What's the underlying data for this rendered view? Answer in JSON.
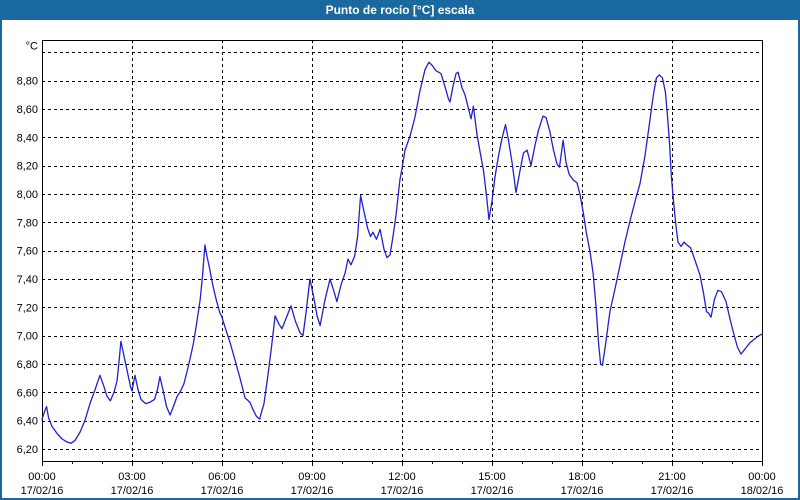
{
  "window": {
    "title": "Punto de rocío [°C] escala",
    "titlebar_color": "#19699e",
    "border_color": "#19699e",
    "background": "#ffffff"
  },
  "chart_data": {
    "type": "line",
    "title": "Punto de rocío [°C] escala",
    "unit_label": "°C",
    "series_name": "Punto de rocío",
    "series_color": "#2121cd",
    "grid_color": "#000000",
    "grid_style": "dashed",
    "plot_bg": "#ffffff",
    "axis_color": "#000000",
    "xlim_hours": [
      0,
      24
    ],
    "ylim": [
      6.115,
      9.087
    ],
    "y_ticks": [
      {
        "v": 6.2,
        "label": "6,20"
      },
      {
        "v": 6.4,
        "label": "6,40"
      },
      {
        "v": 6.6,
        "label": "6,60"
      },
      {
        "v": 6.8,
        "label": "6,80"
      },
      {
        "v": 7.0,
        "label": "7,00"
      },
      {
        "v": 7.2,
        "label": "7,20"
      },
      {
        "v": 7.4,
        "label": "7,40"
      },
      {
        "v": 7.6,
        "label": "7,60"
      },
      {
        "v": 7.8,
        "label": "7,80"
      },
      {
        "v": 8.0,
        "label": "8,00"
      },
      {
        "v": 8.2,
        "label": "8,20"
      },
      {
        "v": 8.4,
        "label": "8,40"
      },
      {
        "v": 8.6,
        "label": "8,60"
      },
      {
        "v": 8.8,
        "label": "8,80"
      },
      {
        "v": 9.0,
        "label": ""
      }
    ],
    "x_ticks": [
      {
        "h": 0,
        "time": "00:00",
        "date": "17/02/16"
      },
      {
        "h": 3,
        "time": "03:00",
        "date": "17/02/16"
      },
      {
        "h": 6,
        "time": "06:00",
        "date": "17/02/16"
      },
      {
        "h": 9,
        "time": "09:00",
        "date": "17/02/16"
      },
      {
        "h": 12,
        "time": "12:00",
        "date": "17/02/16"
      },
      {
        "h": 15,
        "time": "15:00",
        "date": "17/02/16"
      },
      {
        "h": 18,
        "time": "18:00",
        "date": "17/02/16"
      },
      {
        "h": 21,
        "time": "21:00",
        "date": "17/02/16"
      },
      {
        "h": 24,
        "time": "00:00",
        "date": "18/02/16"
      }
    ],
    "points": [
      [
        0.0,
        6.41
      ],
      [
        0.08,
        6.46
      ],
      [
        0.15,
        6.5
      ],
      [
        0.22,
        6.42
      ],
      [
        0.33,
        6.36
      ],
      [
        0.5,
        6.31
      ],
      [
        0.67,
        6.27
      ],
      [
        0.83,
        6.25
      ],
      [
        0.97,
        6.24
      ],
      [
        1.1,
        6.26
      ],
      [
        1.27,
        6.32
      ],
      [
        1.43,
        6.4
      ],
      [
        1.6,
        6.52
      ],
      [
        1.77,
        6.62
      ],
      [
        1.93,
        6.72
      ],
      [
        2.05,
        6.65
      ],
      [
        2.17,
        6.57
      ],
      [
        2.28,
        6.54
      ],
      [
        2.4,
        6.6
      ],
      [
        2.5,
        6.68
      ],
      [
        2.57,
        6.82
      ],
      [
        2.63,
        6.96
      ],
      [
        2.73,
        6.86
      ],
      [
        2.83,
        6.76
      ],
      [
        2.95,
        6.64
      ],
      [
        3.0,
        6.61
      ],
      [
        3.1,
        6.72
      ],
      [
        3.2,
        6.62
      ],
      [
        3.3,
        6.55
      ],
      [
        3.45,
        6.52
      ],
      [
        3.6,
        6.53
      ],
      [
        3.75,
        6.55
      ],
      [
        3.85,
        6.62
      ],
      [
        3.93,
        6.71
      ],
      [
        4.05,
        6.6
      ],
      [
        4.15,
        6.5
      ],
      [
        4.27,
        6.44
      ],
      [
        4.4,
        6.51
      ],
      [
        4.5,
        6.57
      ],
      [
        4.6,
        6.6
      ],
      [
        4.73,
        6.66
      ],
      [
        4.85,
        6.76
      ],
      [
        4.95,
        6.85
      ],
      [
        5.05,
        6.95
      ],
      [
        5.15,
        7.08
      ],
      [
        5.27,
        7.25
      ],
      [
        5.35,
        7.42
      ],
      [
        5.43,
        7.64
      ],
      [
        5.5,
        7.56
      ],
      [
        5.6,
        7.46
      ],
      [
        5.7,
        7.35
      ],
      [
        5.8,
        7.26
      ],
      [
        5.93,
        7.16
      ],
      [
        6.0,
        7.13
      ],
      [
        6.1,
        7.06
      ],
      [
        6.27,
        6.95
      ],
      [
        6.43,
        6.83
      ],
      [
        6.6,
        6.7
      ],
      [
        6.77,
        6.56
      ],
      [
        6.93,
        6.53
      ],
      [
        7.05,
        6.47
      ],
      [
        7.15,
        6.43
      ],
      [
        7.25,
        6.41
      ],
      [
        7.4,
        6.52
      ],
      [
        7.53,
        6.72
      ],
      [
        7.65,
        6.92
      ],
      [
        7.77,
        7.14
      ],
      [
        7.9,
        7.08
      ],
      [
        8.0,
        7.05
      ],
      [
        8.15,
        7.13
      ],
      [
        8.3,
        7.21
      ],
      [
        8.45,
        7.1
      ],
      [
        8.6,
        7.02
      ],
      [
        8.7,
        7.0
      ],
      [
        8.8,
        7.16
      ],
      [
        8.93,
        7.4
      ],
      [
        9.05,
        7.28
      ],
      [
        9.17,
        7.14
      ],
      [
        9.27,
        7.07
      ],
      [
        9.43,
        7.25
      ],
      [
        9.6,
        7.4
      ],
      [
        9.72,
        7.32
      ],
      [
        9.83,
        7.24
      ],
      [
        9.97,
        7.36
      ],
      [
        10.1,
        7.44
      ],
      [
        10.2,
        7.54
      ],
      [
        10.3,
        7.5
      ],
      [
        10.42,
        7.56
      ],
      [
        10.52,
        7.7
      ],
      [
        10.62,
        7.99
      ],
      [
        10.72,
        7.89
      ],
      [
        10.85,
        7.76
      ],
      [
        10.95,
        7.7
      ],
      [
        11.03,
        7.73
      ],
      [
        11.15,
        7.68
      ],
      [
        11.27,
        7.75
      ],
      [
        11.4,
        7.61
      ],
      [
        11.5,
        7.55
      ],
      [
        11.6,
        7.57
      ],
      [
        11.7,
        7.7
      ],
      [
        11.8,
        7.85
      ],
      [
        11.93,
        8.1
      ],
      [
        12.0,
        8.18
      ],
      [
        12.1,
        8.31
      ],
      [
        12.27,
        8.41
      ],
      [
        12.43,
        8.54
      ],
      [
        12.6,
        8.73
      ],
      [
        12.77,
        8.88
      ],
      [
        12.9,
        8.93
      ],
      [
        13.0,
        8.91
      ],
      [
        13.13,
        8.87
      ],
      [
        13.3,
        8.85
      ],
      [
        13.43,
        8.76
      ],
      [
        13.55,
        8.67
      ],
      [
        13.6,
        8.65
      ],
      [
        13.7,
        8.76
      ],
      [
        13.8,
        8.85
      ],
      [
        13.87,
        8.86
      ],
      [
        14.0,
        8.75
      ],
      [
        14.1,
        8.7
      ],
      [
        14.22,
        8.6
      ],
      [
        14.3,
        8.53
      ],
      [
        14.38,
        8.62
      ],
      [
        14.5,
        8.42
      ],
      [
        14.6,
        8.3
      ],
      [
        14.72,
        8.16
      ],
      [
        14.82,
        7.98
      ],
      [
        14.9,
        7.82
      ],
      [
        15.0,
        7.95
      ],
      [
        15.1,
        8.12
      ],
      [
        15.2,
        8.25
      ],
      [
        15.33,
        8.39
      ],
      [
        15.45,
        8.49
      ],
      [
        15.55,
        8.38
      ],
      [
        15.67,
        8.22
      ],
      [
        15.8,
        8.01
      ],
      [
        15.93,
        8.16
      ],
      [
        16.05,
        8.29
      ],
      [
        16.17,
        8.31
      ],
      [
        16.3,
        8.2
      ],
      [
        16.42,
        8.33
      ],
      [
        16.55,
        8.45
      ],
      [
        16.7,
        8.55
      ],
      [
        16.8,
        8.54
      ],
      [
        16.93,
        8.44
      ],
      [
        17.05,
        8.31
      ],
      [
        17.17,
        8.21
      ],
      [
        17.25,
        8.19
      ],
      [
        17.37,
        8.38
      ],
      [
        17.47,
        8.22
      ],
      [
        17.57,
        8.14
      ],
      [
        17.7,
        8.1
      ],
      [
        17.83,
        8.08
      ],
      [
        17.93,
        8.0
      ],
      [
        18.05,
        7.86
      ],
      [
        18.15,
        7.72
      ],
      [
        18.27,
        7.59
      ],
      [
        18.37,
        7.44
      ],
      [
        18.47,
        7.2
      ],
      [
        18.55,
        6.95
      ],
      [
        18.62,
        6.8
      ],
      [
        18.68,
        6.79
      ],
      [
        18.78,
        6.93
      ],
      [
        18.93,
        7.17
      ],
      [
        19.1,
        7.33
      ],
      [
        19.27,
        7.5
      ],
      [
        19.43,
        7.66
      ],
      [
        19.6,
        7.81
      ],
      [
        19.77,
        7.95
      ],
      [
        19.93,
        8.07
      ],
      [
        20.1,
        8.27
      ],
      [
        20.25,
        8.5
      ],
      [
        20.38,
        8.7
      ],
      [
        20.48,
        8.82
      ],
      [
        20.58,
        8.84
      ],
      [
        20.68,
        8.82
      ],
      [
        20.78,
        8.72
      ],
      [
        20.85,
        8.55
      ],
      [
        20.92,
        8.35
      ],
      [
        20.98,
        8.12
      ],
      [
        21.05,
        7.95
      ],
      [
        21.13,
        7.78
      ],
      [
        21.2,
        7.66
      ],
      [
        21.3,
        7.63
      ],
      [
        21.4,
        7.66
      ],
      [
        21.5,
        7.64
      ],
      [
        21.62,
        7.62
      ],
      [
        21.77,
        7.53
      ],
      [
        21.93,
        7.43
      ],
      [
        22.05,
        7.3
      ],
      [
        22.15,
        7.17
      ],
      [
        22.22,
        7.16
      ],
      [
        22.3,
        7.13
      ],
      [
        22.42,
        7.26
      ],
      [
        22.53,
        7.32
      ],
      [
        22.65,
        7.31
      ],
      [
        22.8,
        7.24
      ],
      [
        22.93,
        7.12
      ],
      [
        23.05,
        7.02
      ],
      [
        23.18,
        6.92
      ],
      [
        23.3,
        6.87
      ],
      [
        23.45,
        6.91
      ],
      [
        23.6,
        6.95
      ],
      [
        23.77,
        6.98
      ],
      [
        23.9,
        7.0
      ],
      [
        24.0,
        7.01
      ]
    ]
  }
}
